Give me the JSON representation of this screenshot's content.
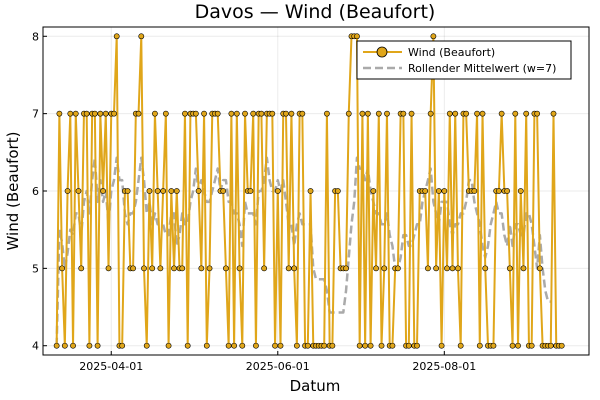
{
  "chart_data": {
    "type": "line",
    "title": "Davos — Wind (Beaufort)",
    "xlabel": "Datum",
    "ylabel": "Wind (Beaufort)",
    "x_start": "2025-03-12",
    "x_end": "2025-09-18",
    "xlim": [
      "2025-03-07",
      "2025-09-23"
    ],
    "ylim": [
      3.88,
      8.12
    ],
    "x_ticks": [
      "2025-04-01",
      "2025-06-01",
      "2025-08-01"
    ],
    "y_ticks": [
      4,
      5,
      6,
      7,
      8
    ],
    "grid": true,
    "legend_position": "top-right",
    "colors": {
      "series": "#e0a61a",
      "rolling": "#aaaaaa",
      "marker_edge": "#000000"
    },
    "series": [
      {
        "name": "Wind (Beaufort)",
        "values": [
          4,
          7,
          5,
          4,
          6,
          7,
          4,
          7,
          6,
          5,
          7,
          7,
          4,
          7,
          7,
          4,
          7,
          6,
          7,
          5,
          7,
          7,
          8,
          4,
          4,
          6,
          6,
          5,
          5,
          7,
          7,
          8,
          5,
          4,
          6,
          5,
          7,
          6,
          5,
          6,
          7,
          4,
          6,
          5,
          6,
          5,
          5,
          7,
          4,
          7,
          7,
          7,
          6,
          5,
          7,
          4,
          5,
          7,
          7,
          7,
          6,
          6,
          5,
          4,
          7,
          4,
          7,
          5,
          4,
          7,
          6,
          6,
          7,
          4,
          7,
          7,
          5,
          7,
          7,
          7,
          4,
          6,
          4,
          7,
          7,
          5,
          7,
          5,
          4,
          7,
          7,
          4,
          4,
          6,
          4,
          4,
          4,
          4,
          4,
          7,
          4,
          4,
          6,
          6,
          5,
          5,
          5,
          7,
          8,
          8,
          8,
          4,
          7,
          4,
          7,
          4,
          6,
          5,
          7,
          4,
          5,
          7,
          4,
          4,
          5,
          5,
          7,
          7,
          4,
          4,
          7,
          4,
          4,
          6,
          6,
          6,
          5,
          7,
          8,
          5,
          6,
          4,
          6,
          5,
          7,
          5,
          7,
          5,
          4,
          7,
          7,
          6,
          6,
          6,
          7,
          4,
          7,
          5,
          4,
          4,
          4,
          6,
          6,
          7,
          6,
          6,
          5,
          4,
          7,
          4,
          6,
          5,
          7,
          4,
          4,
          7,
          7,
          5,
          4,
          4,
          4,
          4,
          7,
          4,
          4,
          4
        ]
      },
      {
        "name": "Rollender Mittelwert (w=7)",
        "values": [
          4.0,
          5.5,
          5.33,
          5.0,
          5.2,
          5.5,
          5.43,
          5.71,
          5.71,
          5.43,
          5.86,
          6.0,
          5.71,
          6.14,
          6.43,
          5.86,
          6.14,
          5.86,
          6.0,
          5.57,
          6.0,
          6.14,
          6.43,
          6.14,
          6.14,
          5.71,
          5.57,
          5.71,
          5.71,
          5.86,
          6.14,
          6.43,
          6.14,
          5.71,
          5.86,
          5.57,
          5.71,
          5.57,
          5.57,
          5.57,
          5.43,
          5.43,
          5.71,
          5.71,
          5.29,
          5.43,
          5.71,
          5.57,
          5.57,
          5.86,
          6.0,
          6.29,
          6.0,
          6.14,
          6.0,
          5.86,
          5.86,
          6.0,
          6.14,
          6.29,
          6.0,
          6.14,
          6.14,
          5.86,
          5.86,
          5.71,
          5.71,
          5.57,
          5.29,
          5.86,
          5.71,
          5.71,
          5.71,
          5.57,
          6.0,
          6.0,
          6.14,
          6.43,
          6.14,
          6.0,
          6.0,
          6.14,
          6.0,
          6.14,
          5.86,
          5.57,
          5.57,
          5.29,
          5.57,
          5.71,
          5.57,
          5.57,
          5.57,
          5.57,
          5.0,
          4.86,
          4.86,
          4.86,
          4.86,
          4.71,
          4.43,
          4.43,
          4.43,
          4.43,
          4.43,
          4.43,
          4.71,
          5.14,
          5.57,
          5.86,
          6.43,
          6.29,
          6.29,
          6.14,
          6.29,
          6.0,
          5.86,
          5.71,
          5.71,
          5.57,
          5.57,
          5.71,
          5.43,
          5.29,
          5.0,
          5.0,
          5.14,
          5.43,
          5.43,
          5.29,
          5.29,
          5.43,
          5.57,
          5.57,
          5.86,
          6.0,
          6.14,
          6.29,
          5.86,
          5.71,
          5.57,
          5.86,
          5.86,
          5.86,
          5.57,
          5.43,
          5.57,
          5.57,
          5.71,
          5.71,
          5.86,
          6.14,
          6.14,
          5.86,
          5.71,
          5.57,
          5.29,
          5.14,
          5.29,
          5.57,
          5.71,
          5.86,
          5.71,
          5.71,
          5.43,
          5.29,
          5.57,
          5.29,
          5.57,
          5.57,
          5.43,
          5.43,
          5.71,
          5.71,
          5.57,
          5.29,
          5.0,
          5.43,
          5.0,
          4.71,
          4.57,
          4.57
        ]
      }
    ]
  }
}
